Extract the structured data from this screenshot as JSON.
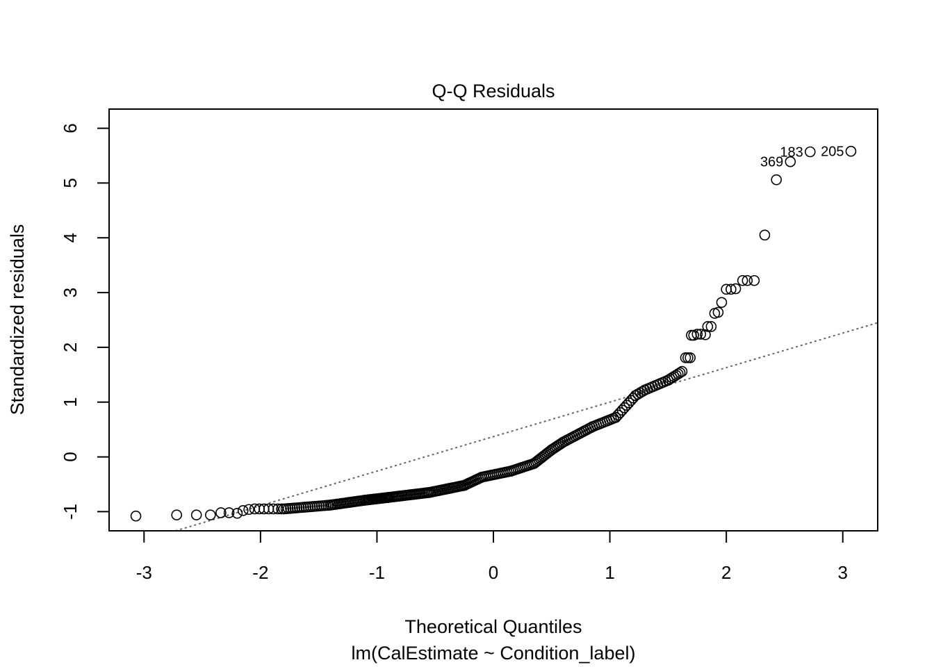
{
  "chart_data": {
    "type": "scatter",
    "title": "Q-Q Residuals",
    "xlabel": "Theoretical Quantiles",
    "ylabel": "Standardized residuals",
    "subtitle": "lm(CalEstimate ~ Condition_label)",
    "xlim": [
      -3.3,
      3.3
    ],
    "ylim": [
      -1.35,
      6.35
    ],
    "xticks": [
      -3,
      -2,
      -1,
      0,
      1,
      2,
      3
    ],
    "yticks": [
      -1,
      0,
      1,
      2,
      3,
      4,
      5,
      6
    ],
    "grid": false,
    "legend": "none",
    "reference_line": {
      "intercept": 0.37,
      "slope": 0.63,
      "style": "dotted",
      "color": "#666666"
    },
    "point_color": "#000000",
    "segments": [
      {
        "x0": -1.8,
        "x1": -1.4,
        "y0": -0.95,
        "y1": -0.88,
        "n": 22
      },
      {
        "x0": -1.4,
        "x1": -1.1,
        "y0": -0.88,
        "y1": -0.79,
        "n": 22
      },
      {
        "x0": -1.1,
        "x1": -0.9,
        "y0": -0.79,
        "y1": -0.74,
        "n": 20
      },
      {
        "x0": -0.9,
        "x1": -0.55,
        "y0": -0.74,
        "y1": -0.65,
        "n": 28
      },
      {
        "x0": -0.55,
        "x1": -0.25,
        "y0": -0.65,
        "y1": -0.52,
        "n": 22
      },
      {
        "x0": -0.25,
        "x1": -0.1,
        "y0": -0.52,
        "y1": -0.37,
        "n": 12
      },
      {
        "x0": -0.1,
        "x1": 0.15,
        "y0": -0.37,
        "y1": -0.26,
        "n": 16
      },
      {
        "x0": 0.15,
        "x1": 0.35,
        "y0": -0.26,
        "y1": -0.12,
        "n": 14
      },
      {
        "x0": 0.35,
        "x1": 0.5,
        "y0": -0.12,
        "y1": 0.13,
        "n": 12
      },
      {
        "x0": 0.5,
        "x1": 0.6,
        "y0": 0.13,
        "y1": 0.27,
        "n": 8
      },
      {
        "x0": 0.6,
        "x1": 0.85,
        "y0": 0.27,
        "y1": 0.55,
        "n": 16
      },
      {
        "x0": 0.85,
        "x1": 1.05,
        "y0": 0.55,
        "y1": 0.72,
        "n": 12
      },
      {
        "x0": 1.05,
        "x1": 1.22,
        "y0": 0.72,
        "y1": 1.12,
        "n": 10
      },
      {
        "x0": 1.22,
        "x1": 1.3,
        "y0": 1.12,
        "y1": 1.22,
        "n": 5
      },
      {
        "x0": 1.3,
        "x1": 1.5,
        "y0": 1.22,
        "y1": 1.4,
        "n": 10
      },
      {
        "x0": 1.5,
        "x1": 1.62,
        "y0": 1.4,
        "y1": 1.56,
        "n": 8
      }
    ],
    "points": [
      [
        -3.07,
        -1.08
      ],
      [
        -2.72,
        -1.06
      ],
      [
        -2.55,
        -1.06
      ],
      [
        -2.43,
        -1.06
      ],
      [
        -2.34,
        -1.02
      ],
      [
        -2.27,
        -1.02
      ],
      [
        -2.2,
        -1.03
      ],
      [
        -2.15,
        -0.98
      ],
      [
        -2.1,
        -0.96
      ],
      [
        -2.05,
        -0.95
      ],
      [
        -2.01,
        -0.95
      ],
      [
        -1.97,
        -0.95
      ],
      [
        -1.93,
        -0.95
      ],
      [
        -1.89,
        -0.95
      ],
      [
        -1.85,
        -0.95
      ],
      [
        -1.82,
        -0.95
      ],
      [
        1.65,
        1.81
      ],
      [
        1.67,
        1.81
      ],
      [
        1.69,
        1.81
      ],
      [
        1.7,
        2.22
      ],
      [
        1.72,
        2.22
      ],
      [
        1.75,
        2.24
      ],
      [
        1.78,
        2.24
      ],
      [
        1.82,
        2.23
      ],
      [
        1.84,
        2.38
      ],
      [
        1.87,
        2.38
      ],
      [
        1.9,
        2.62
      ],
      [
        1.93,
        2.64
      ],
      [
        1.96,
        2.82
      ],
      [
        2.0,
        3.06
      ],
      [
        2.04,
        3.06
      ],
      [
        2.08,
        3.07
      ],
      [
        2.14,
        3.22
      ],
      [
        2.18,
        3.22
      ],
      [
        2.24,
        3.22
      ],
      [
        2.33,
        4.05
      ],
      [
        2.43,
        5.06
      ],
      [
        2.55,
        5.39
      ],
      [
        2.72,
        5.57
      ],
      [
        3.07,
        5.58
      ]
    ],
    "labels": [
      {
        "x": 2.55,
        "y": 5.39,
        "text": "369"
      },
      {
        "x": 2.72,
        "y": 5.57,
        "text": "183"
      },
      {
        "x": 3.07,
        "y": 5.58,
        "text": "205"
      }
    ]
  }
}
